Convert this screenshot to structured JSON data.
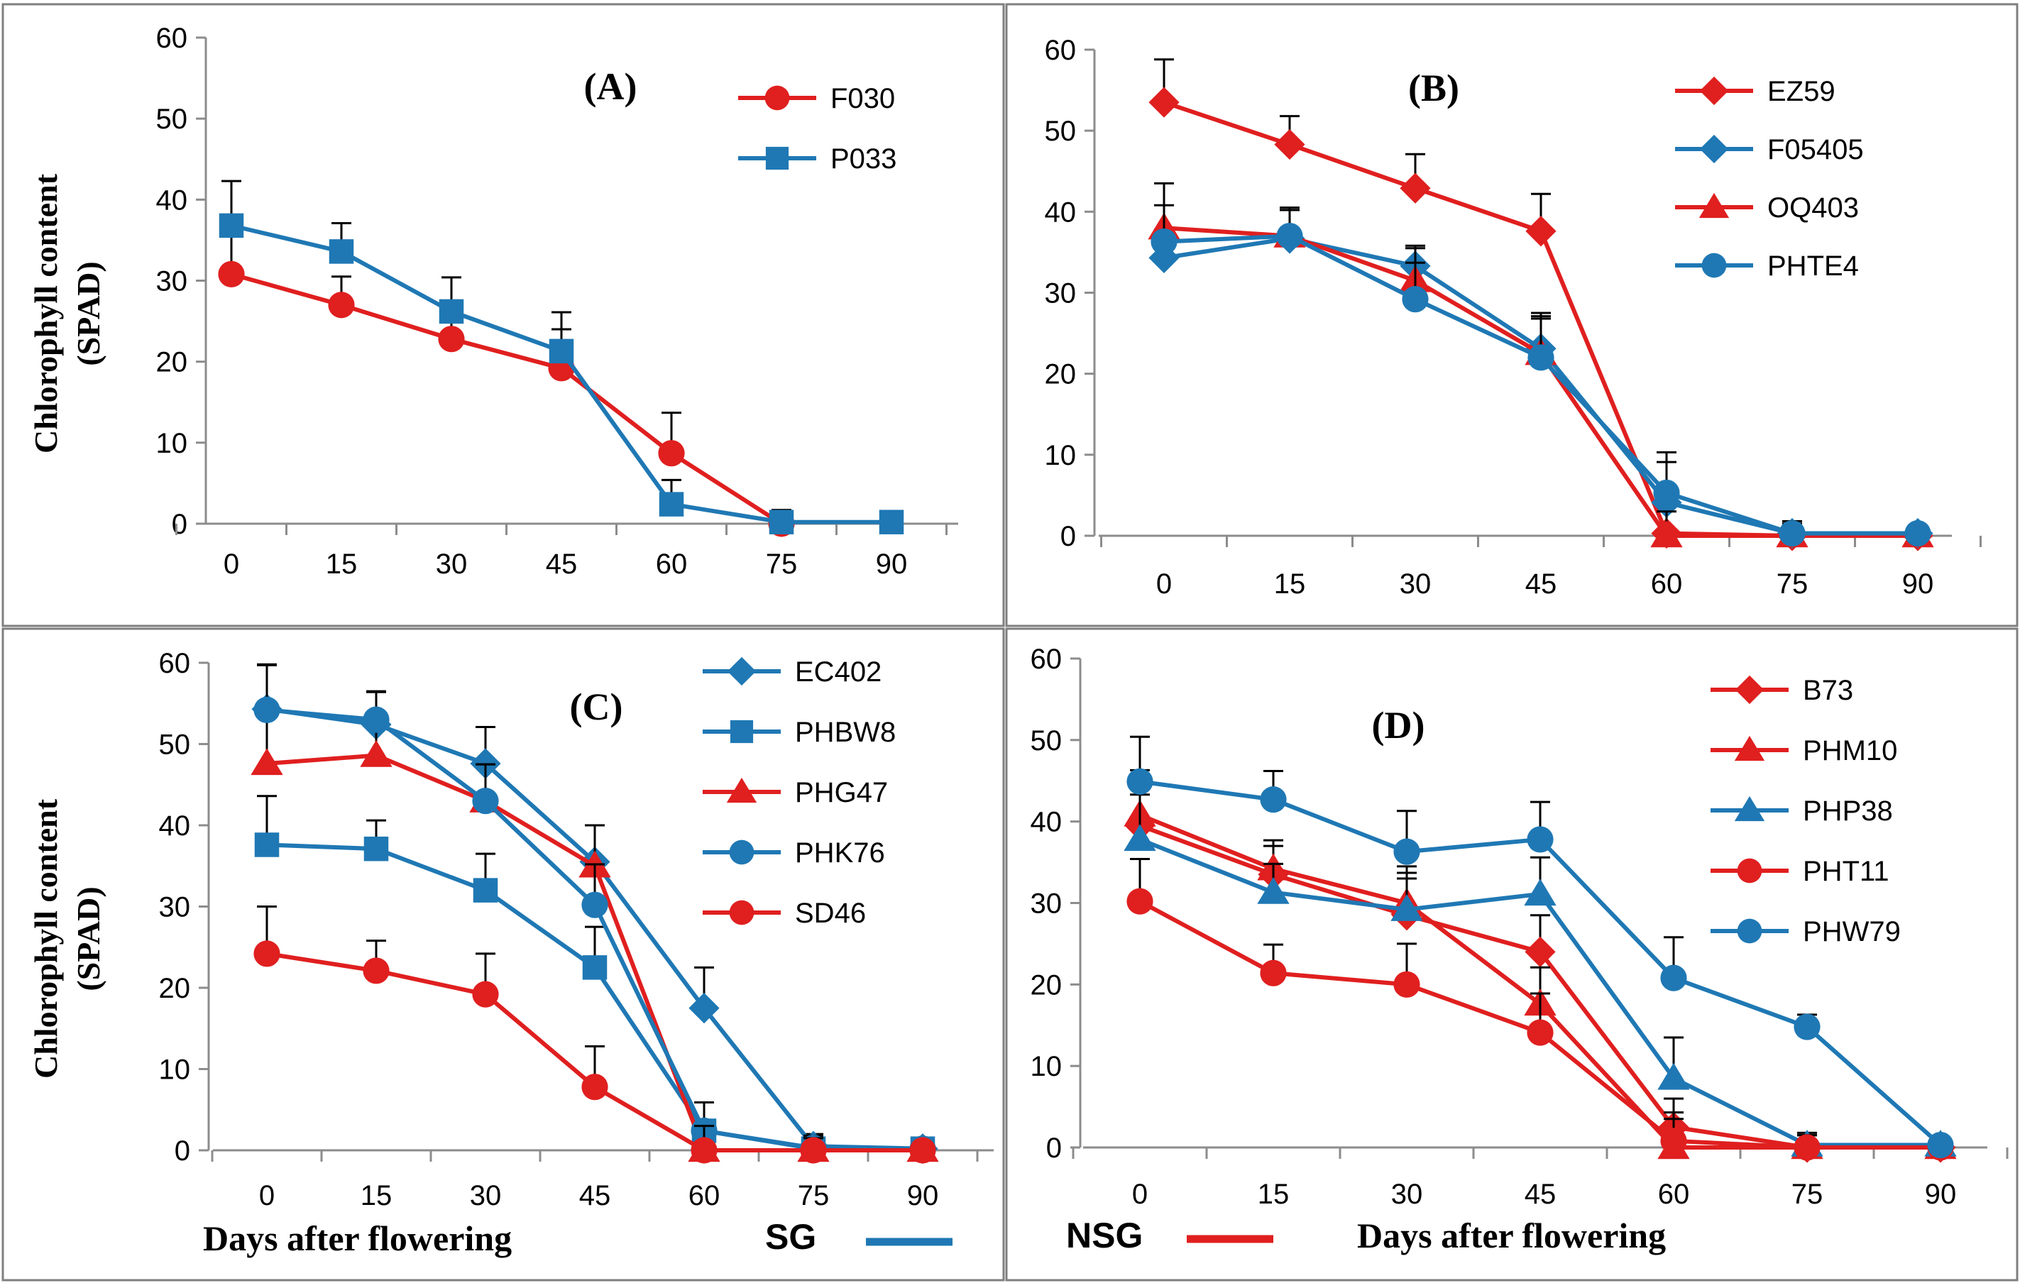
{
  "colors": {
    "SG": "#1f78b4",
    "NSG": "#e01f1f",
    "axis": "#8c8c8c",
    "frame": "#7f7f7f"
  },
  "xlabel": "Days after flowering",
  "ylabel_line1": "Chlorophyll content",
  "ylabel_line2": "(SPAD)",
  "key": {
    "sg_label": "SG",
    "nsg_label": "NSG"
  },
  "chart_data": [
    {
      "type": "line",
      "panel": "(A)",
      "x": [
        0,
        15,
        30,
        45,
        60,
        75,
        90
      ],
      "xticks": [
        "0",
        "15",
        "30",
        "45",
        "60",
        "75",
        "90"
      ],
      "ylim": [
        0,
        60
      ],
      "yticks": [
        "0",
        "10",
        "20",
        "30",
        "40",
        "50",
        "60"
      ],
      "series": [
        {
          "name": "F030",
          "group": "NSG",
          "marker": "circle",
          "values": [
            30.8,
            27,
            22.8,
            19.2,
            8.7,
            0,
            null
          ],
          "errors": [
            5.5,
            3.5,
            4.2,
            4.8,
            5,
            1.5,
            null
          ]
        },
        {
          "name": "P033",
          "group": "SG",
          "marker": "square",
          "values": [
            36.8,
            33.6,
            26.2,
            21.3,
            2.4,
            0.2,
            0.2
          ],
          "errors": [
            5.5,
            3.5,
            4.2,
            4.8,
            3,
            1.5,
            0
          ]
        }
      ]
    },
    {
      "type": "line",
      "panel": "(B)",
      "x": [
        0,
        15,
        30,
        45,
        60,
        75,
        90
      ],
      "xticks": [
        "0",
        "15",
        "30",
        "45",
        "60",
        "75",
        "90"
      ],
      "ylim": [
        0,
        60
      ],
      "yticks": [
        "0",
        "10",
        "20",
        "30",
        "40",
        "50",
        "60"
      ],
      "series": [
        {
          "name": "EZ59",
          "group": "NSG",
          "marker": "diamond",
          "values": [
            53.5,
            48.3,
            42.9,
            37.6,
            0.3,
            0,
            0
          ],
          "errors": [
            5.3,
            3.5,
            4.2,
            4.6,
            3.5,
            1.5,
            0
          ]
        },
        {
          "name": "F05405",
          "group": "SG",
          "marker": "diamond",
          "values": [
            34.3,
            36.7,
            33.3,
            23.1,
            4.1,
            0.3,
            0.3
          ],
          "errors": [
            3.5,
            3.5,
            2.5,
            4,
            5,
            1.5,
            0
          ]
        },
        {
          "name": "OQ403",
          "group": "NSG",
          "marker": "triangle",
          "values": [
            38,
            37,
            31.5,
            22.5,
            0,
            0,
            0
          ],
          "errors": [
            5.5,
            3.5,
            4,
            5,
            3,
            1.5,
            0
          ]
        },
        {
          "name": "PHTE4",
          "group": "SG",
          "marker": "circle",
          "values": [
            36.3,
            37,
            29.2,
            22,
            5.3,
            0.3,
            0.3
          ],
          "errors": [
            4.5,
            3.5,
            4.5,
            4.8,
            5,
            1.5,
            0
          ]
        }
      ]
    },
    {
      "type": "line",
      "panel": "(C)",
      "x": [
        0,
        15,
        30,
        45,
        60,
        75,
        90
      ],
      "xticks": [
        "0",
        "15",
        "30",
        "45",
        "60",
        "75",
        "90"
      ],
      "ylim": [
        0,
        60
      ],
      "yticks": [
        "0",
        "10",
        "20",
        "30",
        "40",
        "50",
        "60"
      ],
      "series": [
        {
          "name": "EC402",
          "group": "SG",
          "marker": "diamond",
          "values": [
            54.3,
            52.4,
            47.6,
            35.5,
            17.5,
            0.5,
            0.2
          ],
          "errors": [
            5.5,
            4,
            4.5,
            4.5,
            5,
            1.5,
            0
          ]
        },
        {
          "name": "PHBW8",
          "group": "SG",
          "marker": "square",
          "values": [
            37.6,
            37.1,
            32,
            22.5,
            2.4,
            0.2,
            0.2
          ],
          "errors": [
            6,
            3.5,
            4.5,
            5,
            3.5,
            1.5,
            0
          ]
        },
        {
          "name": "PHG47",
          "group": "NSG",
          "marker": "triangle",
          "values": [
            47.6,
            48.6,
            43,
            35,
            0,
            0,
            0
          ],
          "errors": [
            6,
            3.5,
            4.5,
            5,
            3,
            1.5,
            0
          ]
        },
        {
          "name": "PHK76",
          "group": "SG",
          "marker": "circle",
          "values": [
            54.2,
            53,
            43,
            30.2,
            2.4,
            0.3,
            0.2
          ],
          "errors": [
            5.5,
            3.5,
            4.5,
            5,
            3.5,
            1.5,
            0
          ]
        },
        {
          "name": "SD46",
          "group": "NSG",
          "marker": "circle",
          "values": [
            24.2,
            22.1,
            19.2,
            7.8,
            0,
            0,
            0
          ],
          "errors": [
            5.8,
            3.7,
            5,
            5,
            3,
            1.5,
            0
          ]
        }
      ]
    },
    {
      "type": "line",
      "panel": "(D)",
      "x": [
        0,
        15,
        30,
        45,
        60,
        75,
        90
      ],
      "xticks": [
        "0",
        "15",
        "30",
        "45",
        "60",
        "75",
        "90"
      ],
      "ylim": [
        0,
        60
      ],
      "yticks": [
        "0",
        "10",
        "20",
        "30",
        "40",
        "50",
        "60"
      ],
      "series": [
        {
          "name": "B73",
          "group": "NSG",
          "marker": "diamond",
          "values": [
            39.5,
            33.5,
            28.5,
            24,
            2.5,
            0,
            0
          ],
          "errors": [
            5.5,
            3.5,
            4.5,
            4.5,
            3.5,
            1.5,
            0
          ]
        },
        {
          "name": "PHM10",
          "group": "NSG",
          "marker": "triangle",
          "values": [
            40.8,
            34.2,
            30,
            17.6,
            0,
            0,
            0
          ],
          "errors": [
            5.5,
            3.5,
            4.5,
            4.5,
            3.5,
            1.5,
            0
          ]
        },
        {
          "name": "PHP38",
          "group": "SG",
          "marker": "triangle",
          "values": [
            37.8,
            31.3,
            29.2,
            31.1,
            8.5,
            0.3,
            0.3
          ],
          "errors": [
            5.5,
            3.5,
            4.5,
            4.5,
            5,
            1.5,
            0
          ]
        },
        {
          "name": "PHT11",
          "group": "NSG",
          "marker": "circle",
          "values": [
            30.2,
            21.4,
            20,
            14.1,
            0.8,
            0,
            0
          ],
          "errors": [
            5.2,
            3.5,
            5,
            4.8,
            3.5,
            1.5,
            0
          ]
        },
        {
          "name": "PHW79",
          "group": "SG",
          "marker": "circle",
          "values": [
            44.9,
            42.7,
            36.3,
            37.8,
            20.8,
            14.8,
            0.3
          ],
          "errors": [
            5.5,
            3.5,
            5,
            4.6,
            5,
            1.5,
            0
          ]
        }
      ]
    }
  ]
}
